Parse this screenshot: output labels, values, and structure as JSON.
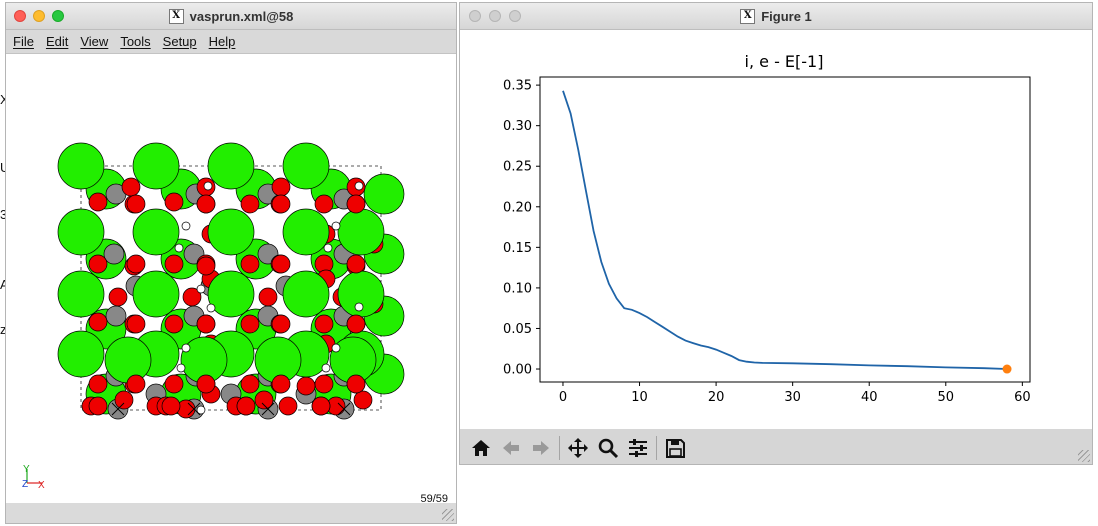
{
  "left_window": {
    "title": "vasprun.xml@58",
    "menu": [
      "File",
      "Edit",
      "View",
      "Tools",
      "Setup",
      "Help"
    ],
    "frame_counter": "59/59",
    "axis_letters": {
      "y": "Y",
      "z": "Z",
      "x": "X"
    }
  },
  "right_window": {
    "title": "Figure 1",
    "toolbar_icons": [
      "home-icon",
      "back-arrow-icon",
      "forward-arrow-icon",
      "pan-icon",
      "zoom-icon",
      "configure-subplots-icon",
      "save-icon"
    ]
  },
  "background_edge_glyphs": [
    "X",
    "U",
    "3",
    "A",
    "z"
  ],
  "colors": {
    "line": "#1f64a8",
    "marker": "#ff7f0e",
    "atom_green": "#22ee00",
    "atom_red": "#ee0000",
    "atom_grey": "#888888"
  },
  "chart_data": {
    "type": "line",
    "title": "i, e - E[-1]",
    "xlabel": "",
    "ylabel": "",
    "xlim": [
      -3,
      61
    ],
    "ylim": [
      -0.016,
      0.36
    ],
    "xticks": [
      0,
      10,
      20,
      30,
      40,
      50,
      60
    ],
    "yticks": [
      0.0,
      0.05,
      0.1,
      0.15,
      0.2,
      0.25,
      0.3,
      0.35
    ],
    "ytick_labels": [
      "0.00",
      "0.05",
      "0.10",
      "0.15",
      "0.20",
      "0.25",
      "0.30",
      "0.35"
    ],
    "grid": false,
    "series": [
      {
        "x": [
          0,
          1,
          2,
          3,
          4,
          5,
          6,
          7,
          8,
          9,
          10,
          11,
          12,
          13,
          14,
          15,
          16,
          17,
          18,
          19,
          20,
          21,
          22,
          23,
          24,
          25,
          26,
          30,
          35,
          40,
          45,
          50,
          55,
          58
        ],
        "values": [
          0.343,
          0.315,
          0.27,
          0.22,
          0.17,
          0.132,
          0.105,
          0.087,
          0.075,
          0.073,
          0.069,
          0.064,
          0.058,
          0.052,
          0.046,
          0.04,
          0.035,
          0.032,
          0.029,
          0.027,
          0.024,
          0.02,
          0.016,
          0.011,
          0.009,
          0.008,
          0.0075,
          0.007,
          0.006,
          0.0045,
          0.0035,
          0.002,
          0.001,
          0.0
        ]
      }
    ],
    "highlight_point": {
      "x": 58,
      "y": 0.0
    }
  }
}
